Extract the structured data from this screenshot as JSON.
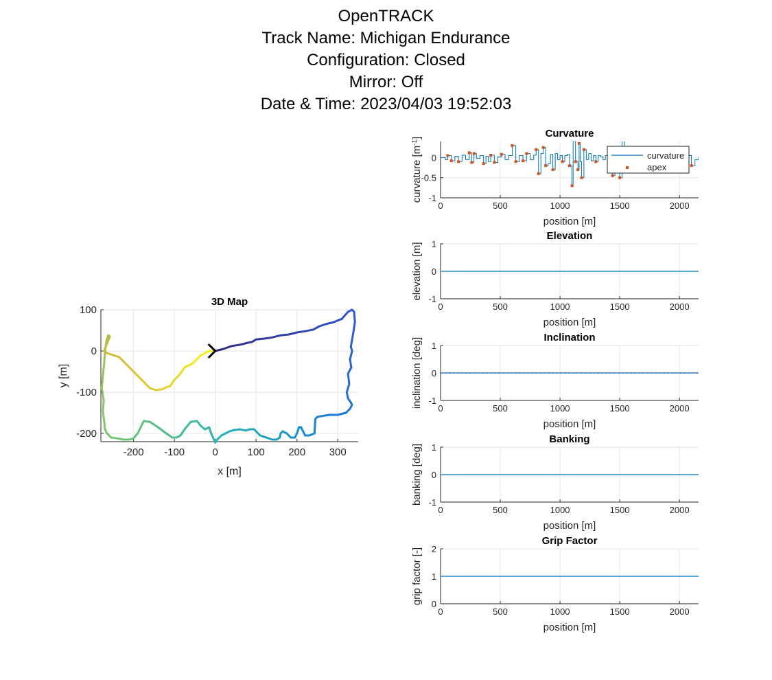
{
  "figure": {
    "title_lines": [
      "OpenTRACK",
      "Track Name: Michigan Endurance",
      "Configuration: Closed",
      "Mirror: Off",
      "Date & Time: 2023/04/03 19:52:03"
    ]
  },
  "colors": {
    "line": "#0072BD",
    "apex": "#D95319",
    "grid": "#e6e6e6",
    "axis": "#262626",
    "start_marker": "#000000"
  },
  "chart_data": [
    {
      "id": "map",
      "type": "line",
      "title": "3D Map",
      "xlabel": "x [m]",
      "ylabel": "y [m]",
      "xlim": [
        -280,
        350
      ],
      "ylim": [
        -220,
        100
      ],
      "xticks": [
        -200,
        -100,
        0,
        100,
        200,
        300
      ],
      "yticks": [
        100,
        0,
        -100,
        -200
      ],
      "grid": true,
      "colormap": "parula (colored by position along track)",
      "start_marker": {
        "x": 0,
        "y": 0,
        "shape": "chevron"
      },
      "track": {
        "x": [
          0,
          20,
          40,
          60,
          80,
          90,
          100,
          120,
          140,
          160,
          180,
          200,
          220,
          240,
          255,
          270,
          290,
          310,
          325,
          335,
          340,
          342,
          338,
          332,
          335,
          330,
          333,
          325,
          328,
          322,
          325,
          332,
          335,
          330,
          320,
          300,
          280,
          260,
          250,
          245,
          243,
          230,
          220,
          210,
          205,
          200,
          195,
          185,
          175,
          165,
          160,
          158,
          150,
          140,
          125,
          110,
          100,
          95,
          85,
          75,
          60,
          45,
          35,
          25,
          15,
          5,
          0,
          -10,
          -15,
          -25,
          -35,
          -45,
          -60,
          -75,
          -85,
          -95,
          -105,
          -120,
          -140,
          -160,
          -175,
          -180,
          -190,
          -200,
          -210,
          -225,
          -240,
          -255,
          -265,
          -270,
          -272,
          -275,
          -273,
          -278,
          -275,
          -272,
          -270,
          -268,
          -265,
          -262,
          -258,
          -262,
          -268,
          -272,
          -265,
          -250,
          -235,
          -220,
          -205,
          -190,
          -175,
          -160,
          -145,
          -130,
          -120,
          -110,
          -100,
          -90,
          -82,
          -75,
          -65,
          -55,
          -45,
          -35,
          -25,
          -15,
          -5,
          0
        ],
        "y": [
          0,
          5,
          12,
          15,
          20,
          22,
          28,
          30,
          33,
          38,
          40,
          45,
          48,
          52,
          60,
          65,
          70,
          78,
          95,
          100,
          95,
          70,
          45,
          10,
          0,
          -20,
          -40,
          -55,
          -80,
          -100,
          -115,
          -125,
          -130,
          -140,
          -150,
          -155,
          -155,
          -158,
          -160,
          -165,
          -200,
          -205,
          -205,
          -185,
          -185,
          -200,
          -210,
          -210,
          -200,
          -195,
          -200,
          -210,
          -215,
          -215,
          -210,
          -205,
          -195,
          -190,
          -190,
          -193,
          -190,
          -192,
          -195,
          -200,
          -205,
          -215,
          -222,
          -200,
          -185,
          -190,
          -182,
          -170,
          -172,
          -190,
          -205,
          -210,
          -210,
          -200,
          -185,
          -172,
          -170,
          -180,
          -200,
          -212,
          -215,
          -215,
          -212,
          -210,
          -200,
          -190,
          -170,
          -145,
          -120,
          -90,
          -60,
          -30,
          -5,
          15,
          30,
          38,
          35,
          25,
          10,
          0,
          -5,
          -10,
          -15,
          -30,
          -45,
          -60,
          -75,
          -90,
          -95,
          -93,
          -88,
          -85,
          -70,
          -60,
          -50,
          -40,
          -35,
          -30,
          -20,
          -10,
          -5,
          0,
          0,
          0
        ],
        "x_direction_note": "ordered from start marker along track"
      }
    },
    {
      "id": "curvature",
      "type": "line",
      "title": "Curvature",
      "xlabel": "position [m]",
      "ylabel": "curvature [m",
      "ylabel_sup": "-1",
      "ylabel_end": "]",
      "xlim": [
        0,
        2160
      ],
      "ylim": [
        -1,
        0.4
      ],
      "xticks": [
        0,
        500,
        1000,
        1500,
        2000
      ],
      "yticks": [
        0,
        -0.5,
        -1
      ],
      "ytick_labels": [
        "0",
        "-0.5",
        "-1"
      ],
      "grid": true,
      "legend": {
        "position": "top-right",
        "entries": [
          "curvature",
          "apex"
        ]
      },
      "series": [
        {
          "name": "curvature",
          "style": "line",
          "x": [
            0,
            40,
            60,
            90,
            120,
            150,
            180,
            210,
            240,
            260,
            280,
            300,
            330,
            360,
            380,
            400,
            420,
            450,
            480,
            510,
            540,
            570,
            600,
            630,
            660,
            690,
            720,
            750,
            780,
            800,
            820,
            840,
            860,
            880,
            900,
            920,
            940,
            960,
            980,
            1000,
            1020,
            1040,
            1060,
            1080,
            1100,
            1110,
            1130,
            1150,
            1160,
            1170,
            1180,
            1200,
            1220,
            1240,
            1260,
            1280,
            1300,
            1320,
            1340,
            1360,
            1380,
            1400,
            1420,
            1440,
            1460,
            1480,
            1500,
            1520,
            1540,
            1560,
            1580,
            1600,
            1620,
            1650,
            1680,
            1710,
            1740,
            1770,
            1800,
            1830,
            1860,
            1890,
            1920,
            1950,
            1980,
            2010,
            2040,
            2070,
            2100,
            2130,
            2160
          ],
          "y": [
            0,
            -0.05,
            0.05,
            -0.08,
            0.03,
            -0.1,
            0.06,
            -0.05,
            0.12,
            -0.12,
            0.1,
            -0.02,
            0.05,
            -0.15,
            0.03,
            -0.1,
            0.06,
            -0.12,
            0.02,
            0.08,
            -0.05,
            0.05,
            0.3,
            -0.1,
            0.05,
            -0.08,
            0.1,
            -0.05,
            0.06,
            0.2,
            -0.4,
            0.1,
            0.25,
            -0.2,
            -0.15,
            0.08,
            -0.3,
            0.1,
            -0.05,
            0.05,
            -0.1,
            0.05,
            0.08,
            -0.2,
            -0.7,
            0.4,
            -0.1,
            -0.3,
            0.35,
            -0.1,
            -0.5,
            0.2,
            -0.05,
            0.1,
            -0.08,
            0.05,
            -0.1,
            0.05,
            0.02,
            -0.05,
            0.05,
            -0.08,
            0.1,
            -0.45,
            -0.2,
            0.05,
            -0.5,
            0.45,
            -0.05,
            0.05,
            -0.1,
            0.06,
            -0.08,
            0.05,
            -0.05,
            0.08,
            -0.1,
            0.05,
            -0.02,
            0.03,
            0.05,
            -0.05,
            0.08,
            -0.1,
            0.05,
            0.1,
            -0.15,
            0.05,
            -0.2,
            -0.05,
            0.02
          ]
        },
        {
          "name": "apex",
          "style": "marker",
          "x": [
            60,
            90,
            150,
            240,
            260,
            280,
            360,
            420,
            450,
            510,
            600,
            630,
            690,
            720,
            800,
            820,
            860,
            880,
            940,
            1020,
            1080,
            1100,
            1130,
            1150,
            1160,
            1180,
            1200,
            1300,
            1440,
            1460,
            1500,
            1520,
            1620,
            1740,
            1890,
            2010,
            2040,
            2070,
            2100
          ],
          "y": [
            0.05,
            -0.08,
            -0.1,
            0.12,
            -0.12,
            0.1,
            -0.15,
            0.06,
            -0.12,
            0.08,
            0.3,
            -0.1,
            -0.08,
            0.1,
            0.2,
            -0.4,
            0.25,
            -0.2,
            -0.3,
            -0.1,
            -0.2,
            -0.7,
            -0.1,
            -0.3,
            0.35,
            -0.5,
            0.2,
            -0.1,
            -0.45,
            -0.2,
            -0.5,
            0.45,
            -0.08,
            -0.1,
            0.05,
            0.1,
            -0.15,
            0.05,
            -0.2
          ]
        }
      ]
    },
    {
      "id": "elevation",
      "type": "line",
      "title": "Elevation",
      "xlabel": "position [m]",
      "ylabel": "elevation [m]",
      "xlim": [
        0,
        2160
      ],
      "ylim": [
        -1,
        1
      ],
      "xticks": [
        0,
        500,
        1000,
        1500,
        2000
      ],
      "yticks": [
        1,
        0,
        -1
      ],
      "grid": true,
      "series": [
        {
          "x": [
            0,
            2160
          ],
          "y": [
            0,
            0
          ]
        }
      ]
    },
    {
      "id": "inclination",
      "type": "line",
      "title": "Inclination",
      "xlabel": "position [m]",
      "ylabel": "inclination [deg]",
      "xlim": [
        0,
        2160
      ],
      "ylim": [
        -1,
        1
      ],
      "xticks": [
        0,
        500,
        1000,
        1500,
        2000
      ],
      "yticks": [
        1,
        0,
        -1
      ],
      "grid": true,
      "series": [
        {
          "x": [
            0,
            2160
          ],
          "y": [
            0,
            0
          ],
          "style": "dashed-overlay"
        }
      ]
    },
    {
      "id": "banking",
      "type": "line",
      "title": "Banking",
      "xlabel": "position [m]",
      "ylabel": "banking [deg]",
      "xlim": [
        0,
        2160
      ],
      "ylim": [
        -1,
        1
      ],
      "xticks": [
        0,
        500,
        1000,
        1500,
        2000
      ],
      "yticks": [
        1,
        0,
        -1
      ],
      "grid": true,
      "series": [
        {
          "x": [
            0,
            2160
          ],
          "y": [
            0,
            0
          ]
        }
      ]
    },
    {
      "id": "grip",
      "type": "line",
      "title": "Grip Factor",
      "xlabel": "position [m]",
      "ylabel": "grip factor [-]",
      "xlim": [
        0,
        2160
      ],
      "ylim": [
        0,
        2
      ],
      "xticks": [
        0,
        500,
        1000,
        1500,
        2000
      ],
      "yticks": [
        2,
        1,
        0
      ],
      "grid": true,
      "series": [
        {
          "x": [
            0,
            2160
          ],
          "y": [
            1,
            1
          ]
        }
      ]
    }
  ]
}
